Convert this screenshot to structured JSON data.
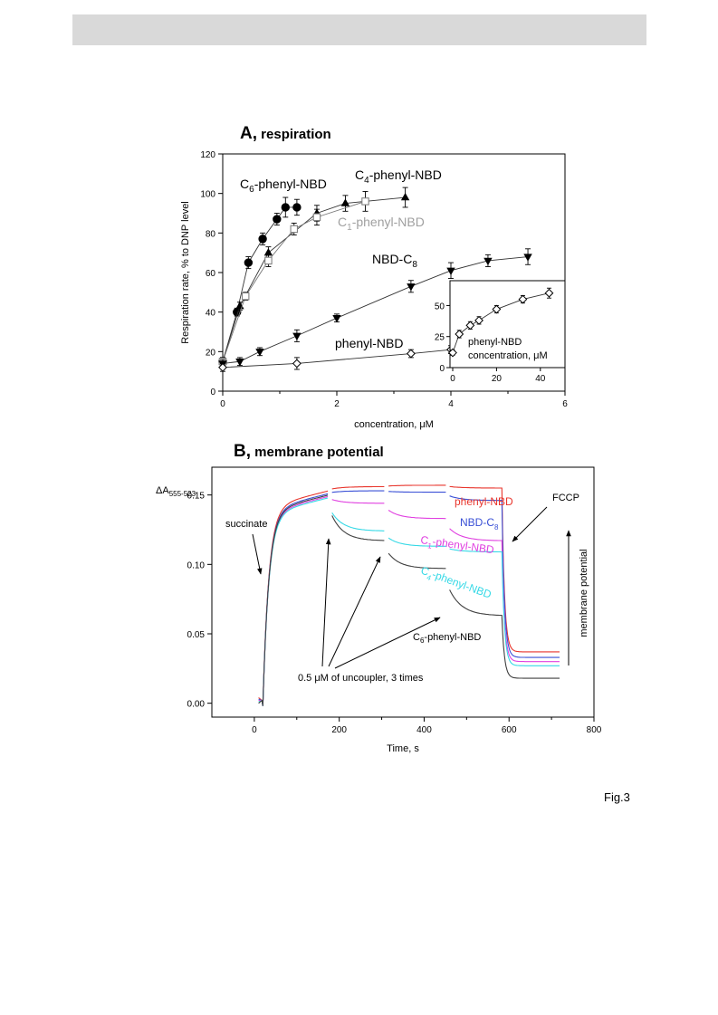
{
  "panelA": {
    "letter": "A,",
    "title": "respiration",
    "chart_data": {
      "type": "scatter",
      "xlabel": "concentration, μM",
      "ylabel": "Respiration rate, % to DNP level",
      "xlim": [
        0,
        6
      ],
      "ylim": [
        0,
        120
      ],
      "xticks": [
        "0",
        "2",
        "4",
        "6"
      ],
      "yticks": [
        "0",
        "20",
        "40",
        "60",
        "80",
        "100",
        "120"
      ],
      "series": [
        {
          "name": "C6-phenyl-NBD",
          "label": "C",
          "sub": "6",
          "label_rest": "-phenyl-NBD",
          "marker": "circle-filled",
          "color": "#000000",
          "x": [
            0,
            0.25,
            0.45,
            0.7,
            0.95,
            1.1,
            1.3
          ],
          "y": [
            15,
            40,
            65,
            77,
            87,
            93,
            93
          ],
          "err": [
            2,
            2,
            3,
            3,
            3,
            5,
            4
          ]
        },
        {
          "name": "C4-phenyl-NBD",
          "label": "C",
          "sub": "4",
          "label_rest": "-phenyl-NBD",
          "marker": "triangle-up-filled",
          "color": "#000000",
          "x": [
            0,
            0.3,
            0.8,
            1.65,
            2.15,
            3.2
          ],
          "y": [
            15,
            43,
            70,
            90,
            95,
            98
          ],
          "err": [
            2,
            2,
            3,
            4,
            4,
            5
          ]
        },
        {
          "name": "C1-phenyl-NBD",
          "label": "C",
          "sub": "1",
          "label_rest": "-phenyl-NBD",
          "marker": "square-open",
          "color": "#808080",
          "x": [
            0,
            0.4,
            0.8,
            1.25,
            1.65,
            2.5
          ],
          "y": [
            15,
            48,
            66,
            82,
            88,
            96
          ],
          "err": [
            2,
            2,
            3,
            3,
            4,
            5
          ]
        },
        {
          "name": "NBD-C8",
          "label": "NBD-C",
          "sub": "8",
          "label_rest": "",
          "marker": "triangle-down-filled",
          "color": "#000000",
          "x": [
            0,
            0.3,
            0.65,
            1.3,
            2,
            3.3,
            4,
            4.65,
            5.35
          ],
          "y": [
            14,
            15,
            20,
            28,
            37,
            53,
            61,
            66,
            68
          ],
          "err": [
            2,
            2,
            2,
            3,
            2,
            3,
            4,
            3,
            4
          ]
        },
        {
          "name": "phenyl-NBD",
          "label": "phenyl-NBD",
          "sub": "",
          "label_rest": "",
          "marker": "diamond-open",
          "color": "#000000",
          "x": [
            0,
            1.3,
            3.3,
            4
          ],
          "y": [
            12,
            14,
            19,
            21
          ],
          "err": [
            2,
            3,
            2,
            2
          ]
        }
      ],
      "inset": {
        "label_line1": "phenyl-NBD",
        "label_line2": "concentration, μM",
        "xlim": [
          0,
          50
        ],
        "ylim": [
          0,
          70
        ],
        "xticks": [
          "0",
          "20",
          "40"
        ],
        "yticks": [
          "0",
          "25",
          "50"
        ],
        "x": [
          0,
          3,
          8,
          12,
          20,
          32,
          44
        ],
        "y": [
          12,
          27,
          34,
          38,
          47,
          55,
          60
        ],
        "err": [
          2,
          3,
          3,
          3,
          3,
          3,
          4
        ]
      }
    }
  },
  "panelB": {
    "letter": "B,",
    "title": "membrane potential",
    "chart_data": {
      "type": "line",
      "ylabel_main": "ΔA",
      "ylabel_sub": "555-523",
      "xlabel": "Time, s",
      "xlim": [
        -100,
        800
      ],
      "ylim": [
        -0.01,
        0.17
      ],
      "xticks": [
        "0",
        "200",
        "400",
        "600",
        "800"
      ],
      "yticks": [
        "0.00",
        "0.05",
        "0.10",
        "0.15"
      ],
      "series": [
        {
          "name": "phenyl-NBD",
          "color": "#e8352c",
          "levels": [
            0.153,
            0.156,
            0.157,
            0.155
          ],
          "final": 0.037
        },
        {
          "name": "NBD-C8",
          "color": "#3a50d6",
          "levels": [
            0.151,
            0.153,
            0.152,
            0.146
          ],
          "final": 0.033
        },
        {
          "name": "C1-phenyl-NBD",
          "color": "#e040e0",
          "levels": [
            0.149,
            0.144,
            0.133,
            0.117
          ],
          "final": 0.03
        },
        {
          "name": "C4-phenyl-NBD",
          "color": "#36d9e6",
          "levels": [
            0.148,
            0.124,
            0.113,
            0.109
          ],
          "final": 0.027
        },
        {
          "name": "C6-phenyl-NBD",
          "color": "#404040",
          "levels": [
            0.15,
            0.117,
            0.097,
            0.063
          ],
          "final": 0.018
        }
      ],
      "annotations": {
        "succinate": "succinate",
        "fccp": "FCCP",
        "uncoupler": "0.5 μM of uncoupler, 3 times",
        "membrane": "membrane potential"
      },
      "labels": {
        "phenyl": "phenyl-NBD",
        "nbdc8": "NBD-C",
        "nbdc8_sub": "8",
        "c1": "C",
        "c1_sub": "1",
        "c1_rest": "-phenyl-NBD",
        "c4": "C",
        "c4_sub": "4",
        "c4_rest": "-phenyl-NBD",
        "c6": "C",
        "c6_sub": "6",
        "c6_rest": "-phenyl-NBD"
      }
    }
  },
  "figure_label": "Fig.3"
}
